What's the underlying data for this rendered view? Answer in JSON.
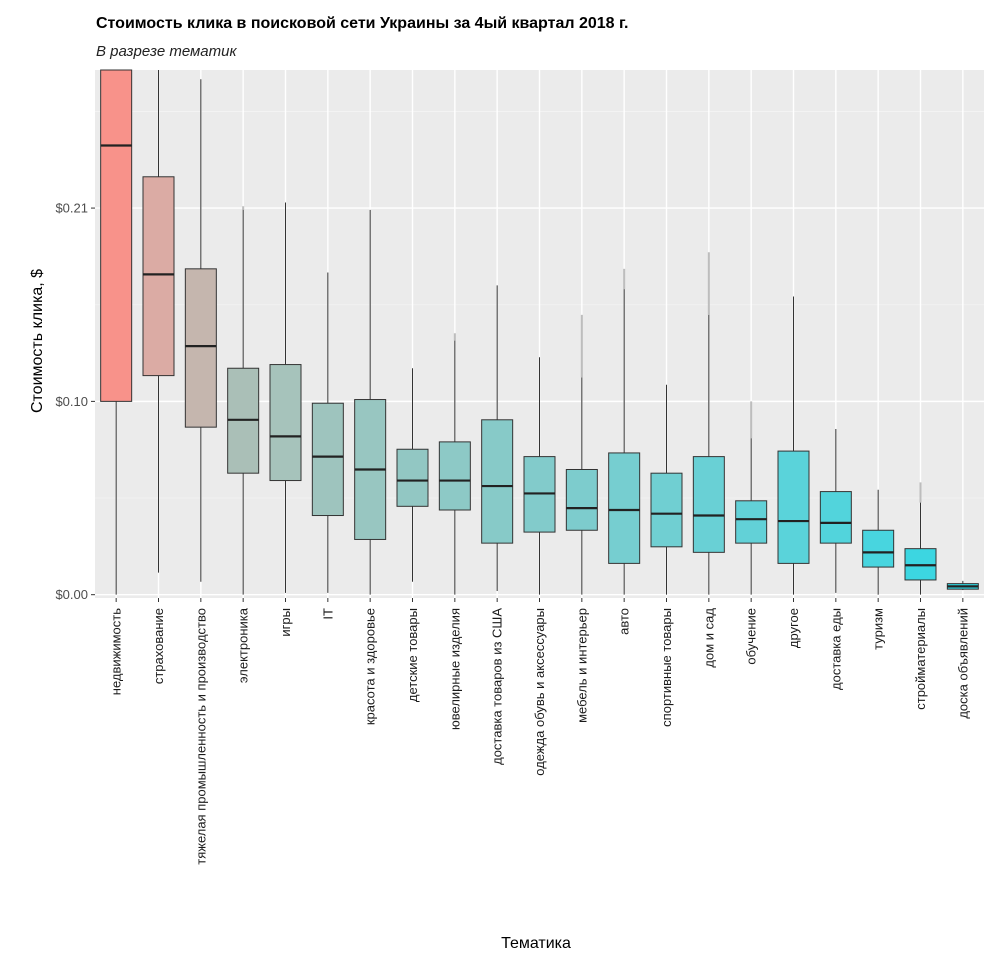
{
  "chart_data": {
    "type": "boxplot",
    "title": "Стоимость клика в поисковой сети Украины за 4ый квартал 2018 г.",
    "subtitle": "В разрезе тематик",
    "xlabel": "Тематика",
    "ylabel": "Стоимость клика, $",
    "ylim": [
      -0.0018,
      0.285
    ],
    "yticks": [
      0.0,
      0.105,
      0.21
    ],
    "ytick_labels": [
      "$0.00",
      "$0.10",
      "$0.21"
    ],
    "grid": true,
    "categories": [
      "недвижимость",
      "страхование",
      "тяжелая промышленность и производство",
      "электроника",
      "игры",
      "IT",
      "красота и здоровье",
      "детские товары",
      "ювелирные изделия",
      "доставка товаров из США",
      "одежда обувь и аксессуары",
      "мебель и интерьер",
      "авто",
      "спортивные товары",
      "дом и сад",
      "обучение",
      "другое",
      "доставка еды",
      "туризм",
      "стройматериалы",
      "доска объявлений"
    ],
    "boxes": [
      {
        "lower": 0.0,
        "q1": 0.105,
        "median": 0.244,
        "q3": 0.285,
        "upper": 0.285,
        "outlier_top": null,
        "color": "#f8928a"
      },
      {
        "lower": 0.012,
        "q1": 0.119,
        "median": 0.174,
        "q3": 0.227,
        "upper": 0.285,
        "outlier_top": null,
        "color": "#dbaba4"
      },
      {
        "lower": 0.007,
        "q1": 0.091,
        "median": 0.135,
        "q3": 0.177,
        "upper": 0.28,
        "outlier_top": null,
        "color": "#c5b6ae"
      },
      {
        "lower": 0.0,
        "q1": 0.066,
        "median": 0.095,
        "q3": 0.123,
        "upper": 0.209,
        "outlier_top": 0.211,
        "color": "#aabfb7"
      },
      {
        "lower": 0.001,
        "q1": 0.062,
        "median": 0.086,
        "q3": 0.125,
        "upper": 0.213,
        "outlier_top": null,
        "color": "#a6c3bb"
      },
      {
        "lower": 0.001,
        "q1": 0.043,
        "median": 0.075,
        "q3": 0.104,
        "upper": 0.175,
        "outlier_top": null,
        "color": "#9ec4be"
      },
      {
        "lower": 0.0,
        "q1": 0.03,
        "median": 0.068,
        "q3": 0.106,
        "upper": 0.209,
        "outlier_top": null,
        "color": "#98c6c1"
      },
      {
        "lower": 0.007,
        "q1": 0.048,
        "median": 0.062,
        "q3": 0.079,
        "upper": 0.123,
        "outlier_top": null,
        "color": "#92c7c3"
      },
      {
        "lower": 0.0,
        "q1": 0.046,
        "median": 0.062,
        "q3": 0.083,
        "upper": 0.138,
        "outlier_top": 0.142,
        "color": "#8dc9c6"
      },
      {
        "lower": 0.002,
        "q1": 0.028,
        "median": 0.059,
        "q3": 0.095,
        "upper": 0.168,
        "outlier_top": null,
        "color": "#87cac8"
      },
      {
        "lower": 0.0,
        "q1": 0.034,
        "median": 0.055,
        "q3": 0.075,
        "upper": 0.129,
        "outlier_top": null,
        "color": "#82cbcb"
      },
      {
        "lower": 0.0,
        "q1": 0.035,
        "median": 0.047,
        "q3": 0.068,
        "upper": 0.118,
        "outlier_top": 0.152,
        "color": "#7dcccd"
      },
      {
        "lower": 0.0,
        "q1": 0.017,
        "median": 0.046,
        "q3": 0.077,
        "upper": 0.166,
        "outlier_top": 0.177,
        "color": "#76ced0"
      },
      {
        "lower": 0.0,
        "q1": 0.026,
        "median": 0.044,
        "q3": 0.066,
        "upper": 0.114,
        "outlier_top": null,
        "color": "#70cfd2"
      },
      {
        "lower": 0.0,
        "q1": 0.023,
        "median": 0.043,
        "q3": 0.075,
        "upper": 0.152,
        "outlier_top": 0.186,
        "color": "#69d0d5"
      },
      {
        "lower": 0.0,
        "q1": 0.028,
        "median": 0.041,
        "q3": 0.051,
        "upper": 0.085,
        "outlier_top": 0.105,
        "color": "#62d1d7"
      },
      {
        "lower": 0.0,
        "q1": 0.017,
        "median": 0.04,
        "q3": 0.078,
        "upper": 0.162,
        "outlier_top": null,
        "color": "#5ad3da"
      },
      {
        "lower": 0.001,
        "q1": 0.028,
        "median": 0.039,
        "q3": 0.056,
        "upper": 0.09,
        "outlier_top": null,
        "color": "#52d4dc"
      },
      {
        "lower": 0.0,
        "q1": 0.015,
        "median": 0.023,
        "q3": 0.035,
        "upper": 0.057,
        "outlier_top": null,
        "color": "#48d5df"
      },
      {
        "lower": 0.0,
        "q1": 0.008,
        "median": 0.016,
        "q3": 0.025,
        "upper": 0.05,
        "outlier_top": 0.061,
        "color": "#3cd6e1"
      },
      {
        "lower": 0.0025,
        "q1": 0.003,
        "median": 0.0045,
        "q3": 0.006,
        "upper": 0.0075,
        "outlier_top": null,
        "color": "#2ed8e4"
      }
    ]
  }
}
